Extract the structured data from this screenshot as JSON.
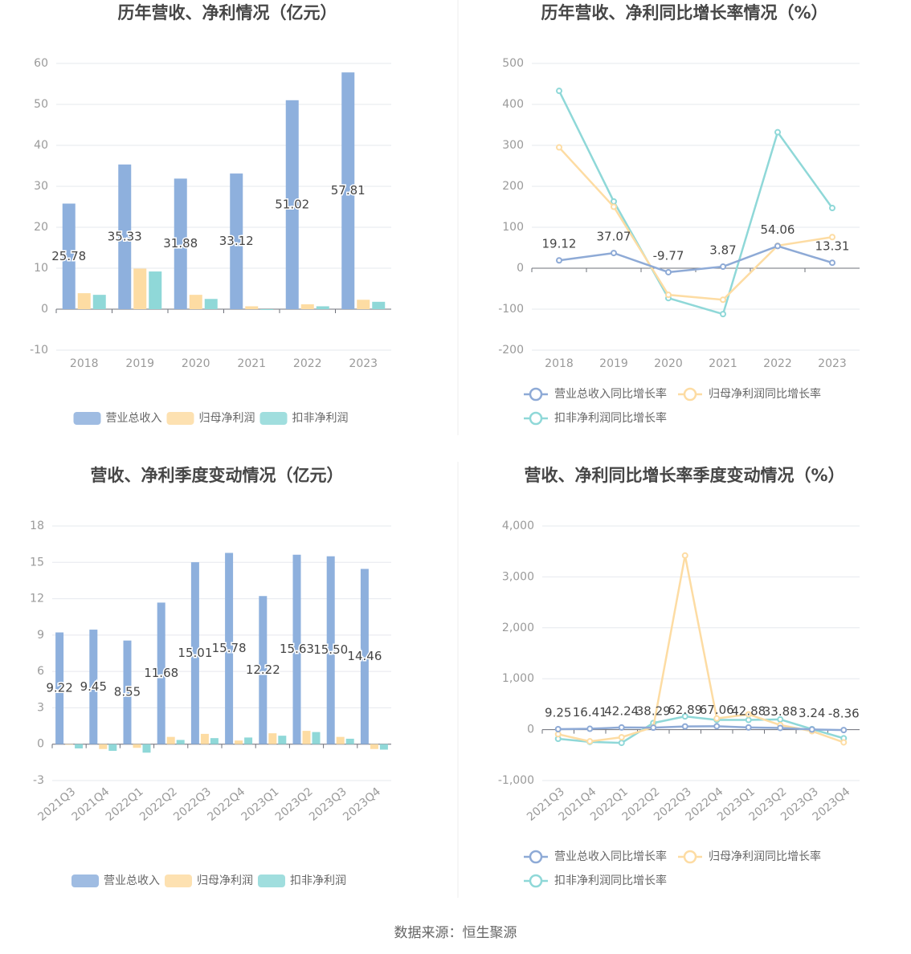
{
  "chart_data": [
    {
      "type": "bar",
      "title": "历年营收、净利情况（亿元）",
      "categories": [
        "2018",
        "2019",
        "2020",
        "2021",
        "2022",
        "2023"
      ],
      "series": [
        {
          "name": "营业总收入",
          "color": "#8eb0dd",
          "values": [
            25.78,
            35.33,
            31.88,
            33.12,
            51.02,
            57.81
          ],
          "show_labels": true
        },
        {
          "name": "归母净利润",
          "color": "#fddca3",
          "values": [
            3.9,
            9.9,
            3.5,
            0.7,
            1.2,
            2.3
          ]
        },
        {
          "name": "扣非净利润",
          "color": "#8fd8d8",
          "values": [
            3.5,
            9.2,
            2.5,
            -0.2,
            0.7,
            1.8
          ]
        }
      ],
      "ylim": [
        -10,
        60
      ],
      "yticks": [
        -10,
        0,
        10,
        20,
        30,
        40,
        50,
        60
      ],
      "grid": true
    },
    {
      "type": "line",
      "title": "历年营收、净利同比增长率情况（%）",
      "categories": [
        "2018",
        "2019",
        "2020",
        "2021",
        "2022",
        "2023"
      ],
      "series": [
        {
          "name": "营业总收入同比增长率",
          "color": "#8eaad6",
          "values": [
            19.12,
            37.07,
            -9.77,
            3.87,
            54.06,
            13.31
          ],
          "show_labels": true
        },
        {
          "name": "归母净利润同比增长率",
          "color": "#fddca3",
          "values": [
            295,
            150,
            -65,
            -77,
            55,
            76
          ]
        },
        {
          "name": "扣非净利润同比增长率",
          "color": "#8fd8d8",
          "values": [
            433,
            163,
            -73,
            -112,
            332,
            147
          ]
        }
      ],
      "ylim": [
        -200,
        500
      ],
      "yticks": [
        -200,
        -100,
        0,
        100,
        200,
        300,
        400,
        500
      ],
      "grid": true
    },
    {
      "type": "bar",
      "title": "营收、净利季度变动情况（亿元）",
      "categories": [
        "2021Q3",
        "2021Q4",
        "2022Q1",
        "2022Q2",
        "2022Q3",
        "2022Q4",
        "2023Q1",
        "2023Q2",
        "2023Q3",
        "2023Q4"
      ],
      "series": [
        {
          "name": "营业总收入",
          "color": "#8eb0dd",
          "values": [
            9.22,
            9.45,
            8.55,
            11.68,
            15.01,
            15.78,
            12.22,
            15.63,
            15.5,
            14.46
          ],
          "value_labels": [
            "9.22",
            "9.45",
            "8.55",
            "11.68",
            "15.01",
            "15.78",
            "12.22",
            "15.63",
            "15.50",
            "14.46"
          ],
          "show_labels": true
        },
        {
          "name": "归母净利润",
          "color": "#fddca3",
          "values": [
            -0.05,
            -0.4,
            -0.3,
            0.6,
            0.85,
            0.3,
            0.9,
            1.1,
            0.6,
            -0.4
          ]
        },
        {
          "name": "扣非净利润",
          "color": "#8fd8d8",
          "values": [
            -0.35,
            -0.55,
            -0.7,
            0.35,
            0.5,
            0.55,
            0.7,
            1.0,
            0.45,
            -0.45
          ]
        }
      ],
      "ylim": [
        -3,
        18
      ],
      "yticks": [
        -3,
        0,
        3,
        6,
        9,
        12,
        15,
        18
      ],
      "grid": true
    },
    {
      "type": "line",
      "title": "营收、净利同比增长率季度变动情况（%）",
      "categories": [
        "2021Q3",
        "2021Q4",
        "2022Q1",
        "2022Q2",
        "2022Q3",
        "2022Q4",
        "2023Q1",
        "2023Q2",
        "2023Q3",
        "2023Q4"
      ],
      "series": [
        {
          "name": "营业总收入同比增长率",
          "color": "#8eaad6",
          "values": [
            9.25,
            16.41,
            42.24,
            38.29,
            62.89,
            67.06,
            42.88,
            33.88,
            3.24,
            -8.36
          ],
          "show_labels": true
        },
        {
          "name": "归母净利润同比增长率",
          "color": "#fddca3",
          "values": [
            -90,
            -230,
            -150,
            50,
            3420,
            220,
            300,
            90,
            -30,
            -250
          ]
        },
        {
          "name": "扣非净利润同比增长率",
          "color": "#8fd8d8",
          "values": [
            -180,
            -240,
            -260,
            130,
            260,
            190,
            190,
            200,
            10,
            -170
          ]
        }
      ],
      "ylim": [
        -1000,
        4000
      ],
      "yticks": [
        {
          "value": -1000,
          "label": "-1,000"
        },
        0,
        {
          "value": 1000,
          "label": "1,000"
        },
        {
          "value": 2000,
          "label": "2,000"
        },
        {
          "value": 3000,
          "label": "3,000"
        },
        {
          "value": 4000,
          "label": "4,000"
        }
      ],
      "grid": true
    }
  ],
  "source": "数据来源：恒生聚源"
}
